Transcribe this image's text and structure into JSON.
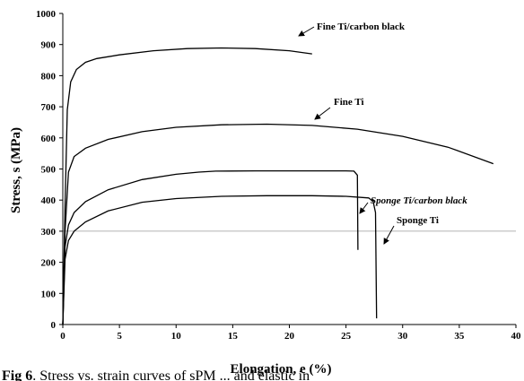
{
  "chart_data": {
    "type": "line",
    "xlabel": "Elongation, e (%)",
    "ylabel": "Stress, s (MPa)",
    "xlim": [
      0,
      40
    ],
    "ylim": [
      0,
      1000
    ],
    "xticks": [
      "0",
      "5",
      "10",
      "15",
      "20",
      "25",
      "30",
      "35",
      "40"
    ],
    "yticks": [
      "0",
      "100",
      "200",
      "300",
      "400",
      "500",
      "600",
      "700",
      "800",
      "900",
      "1000"
    ],
    "grid": false,
    "reference_line_y": 300,
    "series": [
      {
        "name": "Fine Ti/carbon black",
        "points": [
          [
            0,
            0
          ],
          [
            0.2,
            380
          ],
          [
            0.4,
            690
          ],
          [
            0.7,
            780
          ],
          [
            1.2,
            820
          ],
          [
            2,
            843
          ],
          [
            3,
            855
          ],
          [
            5,
            867
          ],
          [
            8,
            880
          ],
          [
            11,
            887
          ],
          [
            14,
            889
          ],
          [
            17,
            887
          ],
          [
            20,
            880
          ],
          [
            22,
            870
          ]
        ]
      },
      {
        "name": "Fine Ti",
        "points": [
          [
            0,
            0
          ],
          [
            0.2,
            300
          ],
          [
            0.5,
            490
          ],
          [
            1,
            540
          ],
          [
            2,
            567
          ],
          [
            4,
            595
          ],
          [
            7,
            620
          ],
          [
            10,
            634
          ],
          [
            14,
            642
          ],
          [
            18,
            644
          ],
          [
            22,
            640
          ],
          [
            26,
            628
          ],
          [
            30,
            605
          ],
          [
            34,
            570
          ],
          [
            38,
            517
          ]
        ]
      },
      {
        "name": "Sponge Ti/carbon black",
        "points": [
          [
            0,
            0
          ],
          [
            0.2,
            250
          ],
          [
            0.5,
            320
          ],
          [
            1,
            360
          ],
          [
            2,
            395
          ],
          [
            4,
            433
          ],
          [
            7,
            466
          ],
          [
            10,
            483
          ],
          [
            12,
            490
          ],
          [
            13.5,
            493
          ],
          [
            17,
            494
          ],
          [
            21,
            494
          ],
          [
            25,
            494
          ],
          [
            25.7,
            493
          ],
          [
            26,
            480
          ],
          [
            26.05,
            240
          ]
        ]
      },
      {
        "name": "Sponge Ti",
        "points": [
          [
            0,
            0
          ],
          [
            0.2,
            210
          ],
          [
            0.5,
            270
          ],
          [
            1,
            300
          ],
          [
            2,
            330
          ],
          [
            4,
            365
          ],
          [
            7,
            393
          ],
          [
            10,
            405
          ],
          [
            14,
            412
          ],
          [
            18,
            414
          ],
          [
            22,
            414
          ],
          [
            25,
            412
          ],
          [
            27,
            407
          ],
          [
            27.4,
            395
          ],
          [
            27.6,
            360
          ],
          [
            27.7,
            20
          ]
        ]
      }
    ],
    "annotations": [
      "Fine Ti/carbon black",
      "Fine Ti",
      "Sponge Ti/carbon black",
      "Sponge Ti"
    ]
  },
  "caption": {
    "fig_label": "Fig 6",
    "text": ". Stress vs. strain curves of sPM ... and elastic in"
  }
}
